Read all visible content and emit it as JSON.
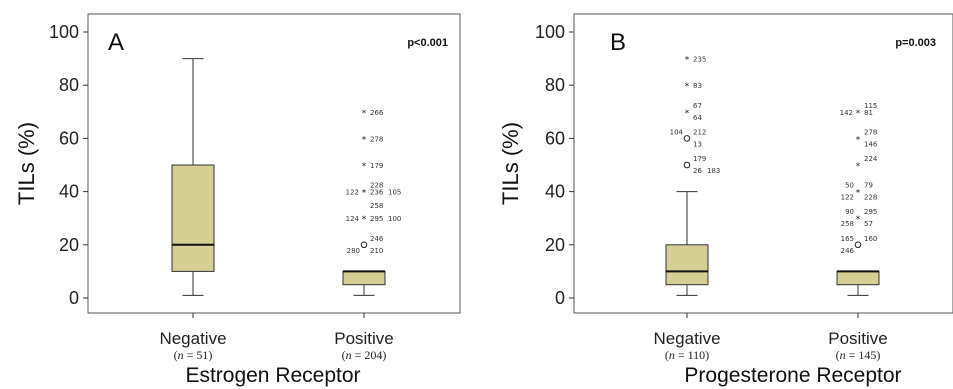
{
  "chart_data": [
    {
      "type": "box",
      "panel": "A",
      "annotation": "p<0.001",
      "ylabel": "TILs (%)",
      "xlabel": "Estrogen Receptor",
      "ylim": [
        0,
        100
      ],
      "yticks": [
        0,
        20,
        40,
        60,
        80,
        100
      ],
      "grid": false,
      "box_color": "#d6cf93",
      "groups": [
        {
          "label": "Negative",
          "n_prefix": "(",
          "n_var": "n",
          "n_text": " = 51)",
          "min": 1,
          "q1": 10,
          "median": 20,
          "q3": 50,
          "max": 90,
          "outliers": []
        },
        {
          "label": "Positive",
          "n_prefix": "(",
          "n_var": "n",
          "n_text": " = 204)",
          "min": 1,
          "q1": 5,
          "median": 10,
          "q3": 10,
          "max": 10,
          "outliers": [
            {
              "y": 70,
              "marker": "star",
              "labels": [
                {
                  "text": "266",
                  "side": "r"
                }
              ]
            },
            {
              "y": 60,
              "marker": "star",
              "labels": [
                {
                  "text": "278",
                  "side": "r"
                }
              ]
            },
            {
              "y": 50,
              "marker": "star",
              "labels": [
                {
                  "text": "179",
                  "side": "r"
                }
              ]
            },
            {
              "y": 40,
              "marker": "star",
              "labels": [
                {
                  "text": "122",
                  "side": "l"
                },
                {
                  "text": "228",
                  "side": "tr"
                },
                {
                  "text": "236",
                  "side": "r"
                },
                {
                  "text": "105",
                  "side": "rr"
                }
              ]
            },
            {
              "y": 35,
              "marker": "none",
              "labels": [
                {
                  "text": "258",
                  "side": "r"
                }
              ]
            },
            {
              "y": 30,
              "marker": "star",
              "labels": [
                {
                  "text": "124",
                  "side": "l"
                },
                {
                  "text": "295",
                  "side": "r"
                },
                {
                  "text": "100",
                  "side": "rr"
                }
              ]
            },
            {
              "y": 20,
              "marker": "circle",
              "labels": [
                {
                  "text": "246",
                  "side": "tr"
                },
                {
                  "text": "280",
                  "side": "bl"
                },
                {
                  "text": "210",
                  "side": "br"
                }
              ]
            }
          ]
        }
      ]
    },
    {
      "type": "box",
      "panel": "B",
      "annotation": "p=0.003",
      "ylabel": "TILs (%)",
      "xlabel": "Progesterone Receptor",
      "ylim": [
        0,
        100
      ],
      "yticks": [
        0,
        20,
        40,
        60,
        80,
        100
      ],
      "grid": false,
      "box_color": "#d6cf93",
      "groups": [
        {
          "label": "Negative",
          "n_prefix": "(",
          "n_var": "n",
          "n_text": " = 110)",
          "min": 1,
          "q1": 5,
          "median": 10,
          "q3": 20,
          "max": 40,
          "outliers": [
            {
              "y": 90,
              "marker": "star",
              "labels": [
                {
                  "text": "235",
                  "side": "r"
                }
              ]
            },
            {
              "y": 80,
              "marker": "star",
              "labels": [
                {
                  "text": "83",
                  "side": "r"
                }
              ]
            },
            {
              "y": 70,
              "marker": "star",
              "labels": [
                {
                  "text": "67",
                  "side": "tr"
                },
                {
                  "text": "64",
                  "side": "br"
                }
              ]
            },
            {
              "y": 60,
              "marker": "circle",
              "labels": [
                {
                  "text": "104",
                  "side": "tl"
                },
                {
                  "text": "212",
                  "side": "tr"
                },
                {
                  "text": "13",
                  "side": "br"
                }
              ]
            },
            {
              "y": 50,
              "marker": "circle",
              "labels": [
                {
                  "text": "179",
                  "side": "tr"
                },
                {
                  "text": "26",
                  "side": "br"
                },
                {
                  "text": "183",
                  "side": "brr"
                }
              ]
            }
          ]
        },
        {
          "label": "Positive",
          "n_prefix": "(",
          "n_var": "n",
          "n_text": " = 145)",
          "min": 1,
          "q1": 5,
          "median": 10,
          "q3": 10,
          "max": 10,
          "outliers": [
            {
              "y": 70,
              "marker": "star",
              "labels": [
                {
                  "text": "115",
                  "side": "tr"
                },
                {
                  "text": "142",
                  "side": "l"
                },
                {
                  "text": "81",
                  "side": "r"
                }
              ]
            },
            {
              "y": 60,
              "marker": "star",
              "labels": [
                {
                  "text": "278",
                  "side": "tr"
                },
                {
                  "text": "146",
                  "side": "br"
                }
              ]
            },
            {
              "y": 50,
              "marker": "star",
              "labels": [
                {
                  "text": "224",
                  "side": "tr"
                }
              ]
            },
            {
              "y": 40,
              "marker": "star",
              "labels": [
                {
                  "text": "50",
                  "side": "tl"
                },
                {
                  "text": "79",
                  "side": "tr"
                },
                {
                  "text": "122",
                  "side": "bl"
                },
                {
                  "text": "228",
                  "side": "br"
                }
              ]
            },
            {
              "y": 30,
              "marker": "star",
              "labels": [
                {
                  "text": "90",
                  "side": "tl"
                },
                {
                  "text": "295",
                  "side": "tr"
                },
                {
                  "text": "258",
                  "side": "bl"
                },
                {
                  "text": "57",
                  "side": "br"
                }
              ]
            },
            {
              "y": 20,
              "marker": "circle",
              "labels": [
                {
                  "text": "165",
                  "side": "tl"
                },
                {
                  "text": "160",
                  "side": "tr"
                },
                {
                  "text": "246",
                  "side": "bl"
                }
              ]
            }
          ]
        }
      ]
    }
  ]
}
